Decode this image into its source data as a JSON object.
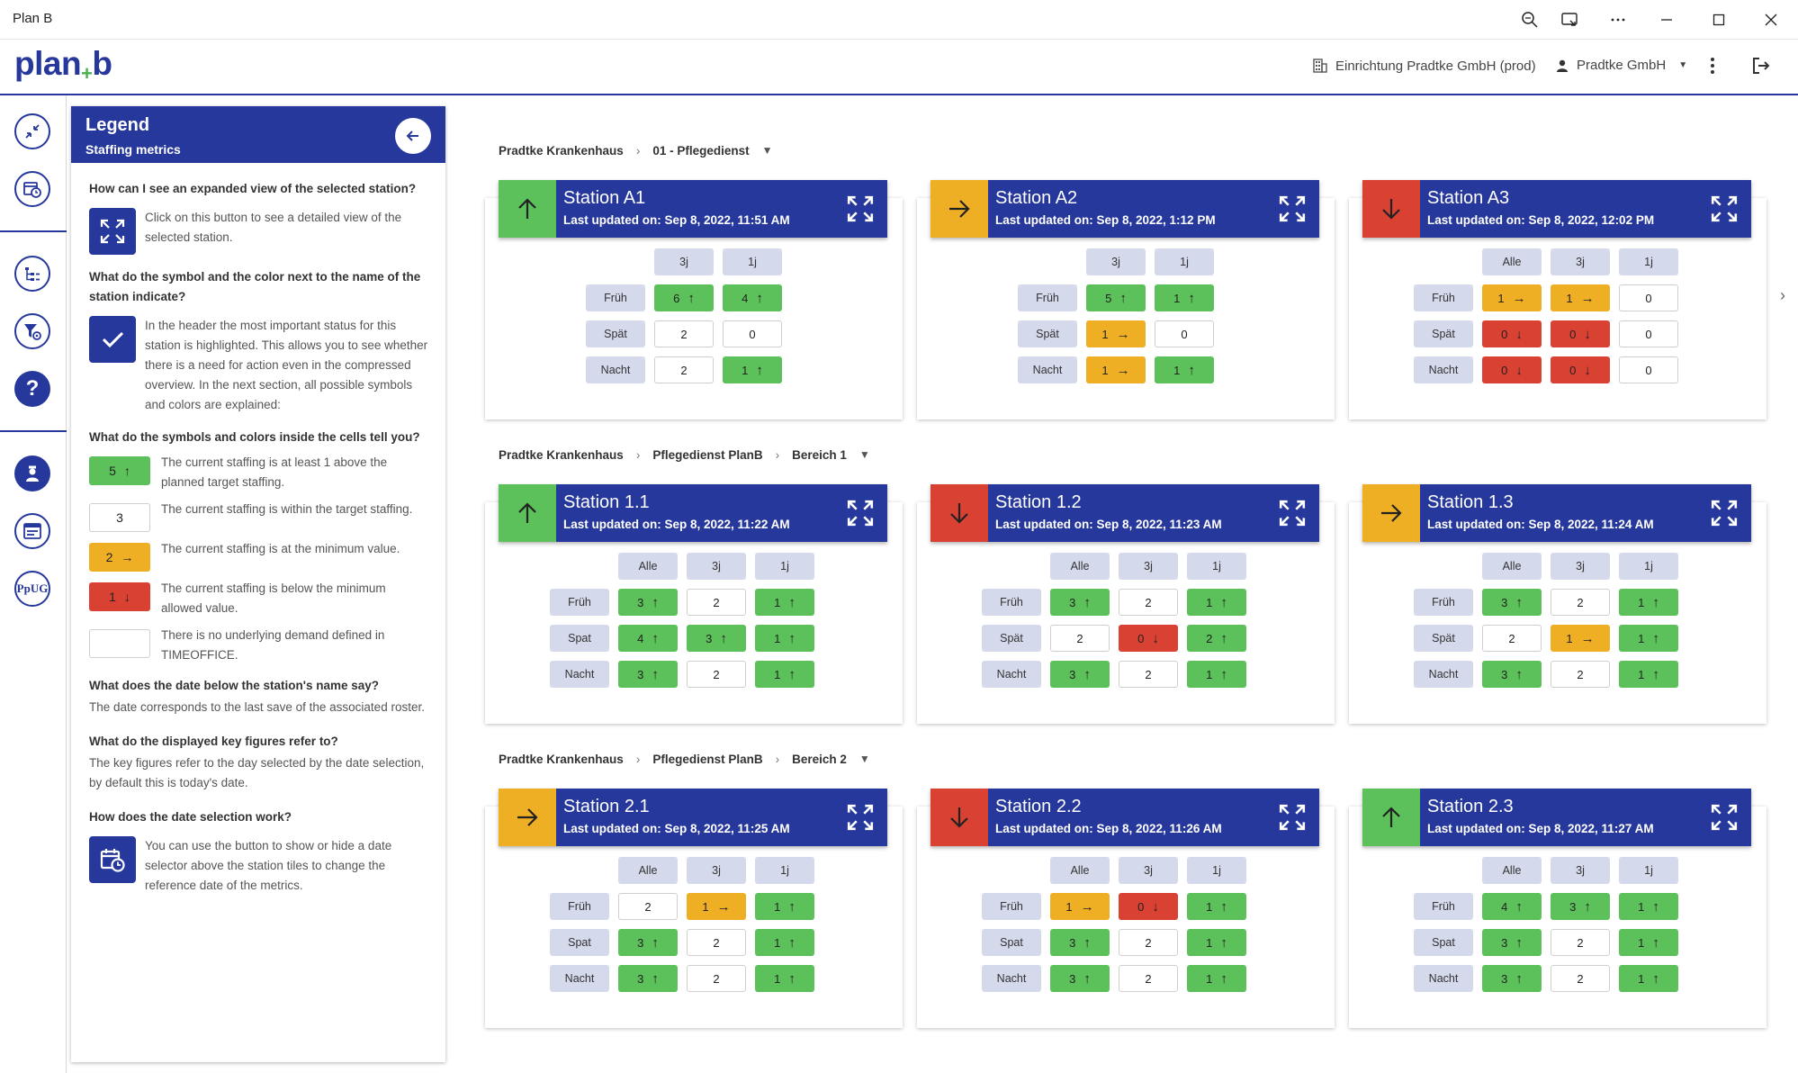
{
  "window": {
    "title": "Plan B"
  },
  "appbar": {
    "logo_main": "plan",
    "logo_plus": "+",
    "logo_end": "b",
    "facility": "Einrichtung Pradtke GmbH (prod)",
    "user": "Pradtke GmbH"
  },
  "colors": {
    "brand": "#27389d",
    "green": "#5cc15a",
    "orange": "#efaf25",
    "red": "#d94133",
    "header_cell": "#d5d9ec"
  },
  "legend": {
    "title": "Legend",
    "subtitle": "Staffing metrics",
    "q1": "How can I see an expanded view of the selected station?",
    "a1": "Click on this button to see a detailed view of the selected station.",
    "q2": "What do the symbol and the color next to the name of the station indicate?",
    "a2": "In the header the most important status for this station is highlighted. This allows you to see whether there is a need for action even in the compressed overview. In the next section, all possible symbols and colors are explained:",
    "q3": "What do the symbols and colors inside the cells tell you?",
    "items": [
      {
        "value": "5",
        "arrow": "↑",
        "color": "green",
        "text": "The current staffing is at least 1 above the planned target staffing."
      },
      {
        "value": "3",
        "arrow": "",
        "color": "white",
        "text": "The current staffing is within the target staffing."
      },
      {
        "value": "2",
        "arrow": "→",
        "color": "orange",
        "text": "The current staffing is at the minimum value."
      },
      {
        "value": "1",
        "arrow": "↓",
        "color": "red",
        "text": "The current staffing is below the minimum allowed value."
      },
      {
        "value": "",
        "arrow": "",
        "color": "white",
        "text": "There is no underlying demand defined in TIMEOFFICE."
      }
    ],
    "q4": "What does the date below the station's name say?",
    "a4": "The date corresponds to the last save of the associated roster.",
    "q5": "What do the displayed key figures refer to?",
    "a5": "The key figures refer to the day selected by the date selection, by default this is today's date.",
    "q6": "How does the date selection work?",
    "a6": "You can use the button to show or hide a date selector above the station tiles to change the reference date of the metrics."
  },
  "groups": [
    {
      "crumbs": [
        "Pradtke Krankenhaus",
        "01 - Pflegedienst"
      ],
      "stations": [
        {
          "name": "Station A1",
          "updated": "Last updated on: Sep 8, 2022, 11:51 AM",
          "status": "green",
          "status_icon": "arrow-up",
          "cols": [
            "3j",
            "1j"
          ],
          "rows": [
            {
              "label": "Früh",
              "cells": [
                {
                  "v": "6",
                  "c": "green",
                  "a": "↑"
                },
                {
                  "v": "4",
                  "c": "green",
                  "a": "↑"
                }
              ]
            },
            {
              "label": "Spät",
              "cells": [
                {
                  "v": "2",
                  "c": "white",
                  "a": ""
                },
                {
                  "v": "0",
                  "c": "white",
                  "a": ""
                }
              ]
            },
            {
              "label": "Nacht",
              "cells": [
                {
                  "v": "2",
                  "c": "white",
                  "a": ""
                },
                {
                  "v": "1",
                  "c": "green",
                  "a": "↑"
                }
              ]
            }
          ]
        },
        {
          "name": "Station A2",
          "updated": "Last updated on: Sep 8, 2022, 1:12 PM",
          "status": "orange",
          "status_icon": "arrow-right",
          "cols": [
            "3j",
            "1j"
          ],
          "rows": [
            {
              "label": "Früh",
              "cells": [
                {
                  "v": "5",
                  "c": "green",
                  "a": "↑"
                },
                {
                  "v": "1",
                  "c": "green",
                  "a": "↑"
                }
              ]
            },
            {
              "label": "Spät",
              "cells": [
                {
                  "v": "1",
                  "c": "orange",
                  "a": "→"
                },
                {
                  "v": "0",
                  "c": "white",
                  "a": ""
                }
              ]
            },
            {
              "label": "Nacht",
              "cells": [
                {
                  "v": "1",
                  "c": "orange",
                  "a": "→"
                },
                {
                  "v": "1",
                  "c": "green",
                  "a": "↑"
                }
              ]
            }
          ]
        },
        {
          "name": "Station A3",
          "updated": "Last updated on: Sep 8, 2022, 12:02 PM",
          "status": "red",
          "status_icon": "arrow-down",
          "cols": [
            "Alle",
            "3j",
            "1j"
          ],
          "rows": [
            {
              "label": "Früh",
              "cells": [
                {
                  "v": "1",
                  "c": "orange",
                  "a": "→"
                },
                {
                  "v": "1",
                  "c": "orange",
                  "a": "→"
                },
                {
                  "v": "0",
                  "c": "white",
                  "a": ""
                }
              ]
            },
            {
              "label": "Spät",
              "cells": [
                {
                  "v": "0",
                  "c": "red",
                  "a": "↓"
                },
                {
                  "v": "0",
                  "c": "red",
                  "a": "↓"
                },
                {
                  "v": "0",
                  "c": "white",
                  "a": ""
                }
              ]
            },
            {
              "label": "Nacht",
              "cells": [
                {
                  "v": "0",
                  "c": "red",
                  "a": "↓"
                },
                {
                  "v": "0",
                  "c": "red",
                  "a": "↓"
                },
                {
                  "v": "0",
                  "c": "white",
                  "a": ""
                }
              ]
            }
          ]
        }
      ]
    },
    {
      "crumbs": [
        "Pradtke Krankenhaus",
        "Pflegedienst PlanB",
        "Bereich 1"
      ],
      "stations": [
        {
          "name": "Station 1.1",
          "updated": "Last updated on: Sep 8, 2022, 11:22 AM",
          "status": "green",
          "status_icon": "arrow-up",
          "cols": [
            "Alle",
            "3j",
            "1j"
          ],
          "rows": [
            {
              "label": "Früh",
              "cells": [
                {
                  "v": "3",
                  "c": "green",
                  "a": "↑"
                },
                {
                  "v": "2",
                  "c": "white",
                  "a": ""
                },
                {
                  "v": "1",
                  "c": "green",
                  "a": "↑"
                }
              ]
            },
            {
              "label": "Spat",
              "cells": [
                {
                  "v": "4",
                  "c": "green",
                  "a": "↑"
                },
                {
                  "v": "3",
                  "c": "green",
                  "a": "↑"
                },
                {
                  "v": "1",
                  "c": "green",
                  "a": "↑"
                }
              ]
            },
            {
              "label": "Nacht",
              "cells": [
                {
                  "v": "3",
                  "c": "green",
                  "a": "↑"
                },
                {
                  "v": "2",
                  "c": "white",
                  "a": ""
                },
                {
                  "v": "1",
                  "c": "green",
                  "a": "↑"
                }
              ]
            }
          ]
        },
        {
          "name": "Station 1.2",
          "updated": "Last updated on: Sep 8, 2022, 11:23 AM",
          "status": "red",
          "status_icon": "arrow-down",
          "cols": [
            "Alle",
            "3j",
            "1j"
          ],
          "rows": [
            {
              "label": "Früh",
              "cells": [
                {
                  "v": "3",
                  "c": "green",
                  "a": "↑"
                },
                {
                  "v": "2",
                  "c": "white",
                  "a": ""
                },
                {
                  "v": "1",
                  "c": "green",
                  "a": "↑"
                }
              ]
            },
            {
              "label": "Spät",
              "cells": [
                {
                  "v": "2",
                  "c": "white",
                  "a": ""
                },
                {
                  "v": "0",
                  "c": "red",
                  "a": "↓"
                },
                {
                  "v": "2",
                  "c": "green",
                  "a": "↑"
                }
              ]
            },
            {
              "label": "Nacht",
              "cells": [
                {
                  "v": "3",
                  "c": "green",
                  "a": "↑"
                },
                {
                  "v": "2",
                  "c": "white",
                  "a": ""
                },
                {
                  "v": "1",
                  "c": "green",
                  "a": "↑"
                }
              ]
            }
          ]
        },
        {
          "name": "Station 1.3",
          "updated": "Last updated on: Sep 8, 2022, 11:24 AM",
          "status": "orange",
          "status_icon": "arrow-right",
          "cols": [
            "Alle",
            "3j",
            "1j"
          ],
          "rows": [
            {
              "label": "Früh",
              "cells": [
                {
                  "v": "3",
                  "c": "green",
                  "a": "↑"
                },
                {
                  "v": "2",
                  "c": "white",
                  "a": ""
                },
                {
                  "v": "1",
                  "c": "green",
                  "a": "↑"
                }
              ]
            },
            {
              "label": "Spät",
              "cells": [
                {
                  "v": "2",
                  "c": "white",
                  "a": ""
                },
                {
                  "v": "1",
                  "c": "orange",
                  "a": "→"
                },
                {
                  "v": "1",
                  "c": "green",
                  "a": "↑"
                }
              ]
            },
            {
              "label": "Nacht",
              "cells": [
                {
                  "v": "3",
                  "c": "green",
                  "a": "↑"
                },
                {
                  "v": "2",
                  "c": "white",
                  "a": ""
                },
                {
                  "v": "1",
                  "c": "green",
                  "a": "↑"
                }
              ]
            }
          ]
        }
      ]
    },
    {
      "crumbs": [
        "Pradtke Krankenhaus",
        "Pflegedienst PlanB",
        "Bereich 2"
      ],
      "stations": [
        {
          "name": "Station 2.1",
          "updated": "Last updated on: Sep 8, 2022, 11:25 AM",
          "status": "orange",
          "status_icon": "arrow-right",
          "cols": [
            "Alle",
            "3j",
            "1j"
          ],
          "rows": [
            {
              "label": "Früh",
              "cells": [
                {
                  "v": "2",
                  "c": "white",
                  "a": ""
                },
                {
                  "v": "1",
                  "c": "orange",
                  "a": "→"
                },
                {
                  "v": "1",
                  "c": "green",
                  "a": "↑"
                }
              ]
            },
            {
              "label": "Spat",
              "cells": [
                {
                  "v": "3",
                  "c": "green",
                  "a": "↑"
                },
                {
                  "v": "2",
                  "c": "white",
                  "a": ""
                },
                {
                  "v": "1",
                  "c": "green",
                  "a": "↑"
                }
              ]
            },
            {
              "label": "Nacht",
              "cells": [
                {
                  "v": "3",
                  "c": "green",
                  "a": "↑"
                },
                {
                  "v": "2",
                  "c": "white",
                  "a": ""
                },
                {
                  "v": "1",
                  "c": "green",
                  "a": "↑"
                }
              ]
            }
          ]
        },
        {
          "name": "Station 2.2",
          "updated": "Last updated on: Sep 8, 2022, 11:26 AM",
          "status": "red",
          "status_icon": "arrow-down",
          "cols": [
            "Alle",
            "3j",
            "1j"
          ],
          "rows": [
            {
              "label": "Früh",
              "cells": [
                {
                  "v": "1",
                  "c": "orange",
                  "a": "→"
                },
                {
                  "v": "0",
                  "c": "red",
                  "a": "↓"
                },
                {
                  "v": "1",
                  "c": "green",
                  "a": "↑"
                }
              ]
            },
            {
              "label": "Spat",
              "cells": [
                {
                  "v": "3",
                  "c": "green",
                  "a": "↑"
                },
                {
                  "v": "2",
                  "c": "white",
                  "a": ""
                },
                {
                  "v": "1",
                  "c": "green",
                  "a": "↑"
                }
              ]
            },
            {
              "label": "Nacht",
              "cells": [
                {
                  "v": "3",
                  "c": "green",
                  "a": "↑"
                },
                {
                  "v": "2",
                  "c": "white",
                  "a": ""
                },
                {
                  "v": "1",
                  "c": "green",
                  "a": "↑"
                }
              ]
            }
          ]
        },
        {
          "name": "Station 2.3",
          "updated": "Last updated on: Sep 8, 2022, 11:27 AM",
          "status": "green",
          "status_icon": "arrow-up",
          "cols": [
            "Alle",
            "3j",
            "1j"
          ],
          "rows": [
            {
              "label": "Früh",
              "cells": [
                {
                  "v": "4",
                  "c": "green",
                  "a": "↑"
                },
                {
                  "v": "3",
                  "c": "green",
                  "a": "↑"
                },
                {
                  "v": "1",
                  "c": "green",
                  "a": "↑"
                }
              ]
            },
            {
              "label": "Spat",
              "cells": [
                {
                  "v": "3",
                  "c": "green",
                  "a": "↑"
                },
                {
                  "v": "2",
                  "c": "white",
                  "a": ""
                },
                {
                  "v": "1",
                  "c": "green",
                  "a": "↑"
                }
              ]
            },
            {
              "label": "Nacht",
              "cells": [
                {
                  "v": "3",
                  "c": "green",
                  "a": "↑"
                },
                {
                  "v": "2",
                  "c": "white",
                  "a": ""
                },
                {
                  "v": "1",
                  "c": "green",
                  "a": "↑"
                }
              ]
            }
          ]
        }
      ]
    }
  ],
  "rail": {
    "ppug_label": "PpUG"
  },
  "icons": {
    "zoom": "zoom-icon",
    "cast": "cast-icon",
    "more": "more-icon",
    "minimize": "minimize-icon",
    "maximize": "maximize-icon",
    "close": "close-icon"
  }
}
